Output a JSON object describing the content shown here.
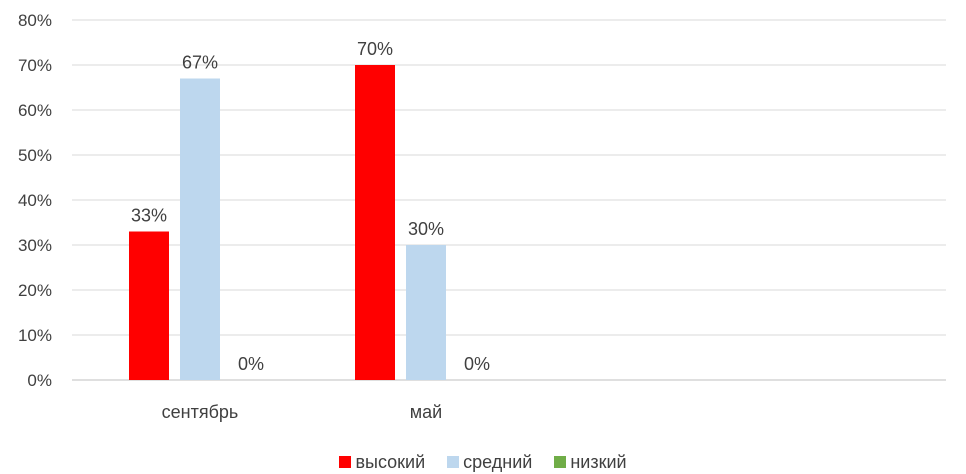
{
  "chart_data": {
    "type": "bar",
    "categories": [
      "сентябрь",
      "май"
    ],
    "series": [
      {
        "name": "высокий",
        "color": "#ff0000",
        "values": [
          33,
          70
        ]
      },
      {
        "name": "средний",
        "color": "#bdd7ee",
        "values": [
          67,
          30
        ]
      },
      {
        "name": "низкий",
        "color": "#70ad47",
        "values": [
          0,
          0
        ]
      }
    ],
    "value_suffix": "%",
    "ylim": [
      0,
      80
    ],
    "yticks": [
      0,
      10,
      20,
      30,
      40,
      50,
      60,
      70,
      80
    ],
    "grid": true,
    "legend_position": "bottom",
    "title": "",
    "xlabel": "",
    "ylabel": ""
  }
}
